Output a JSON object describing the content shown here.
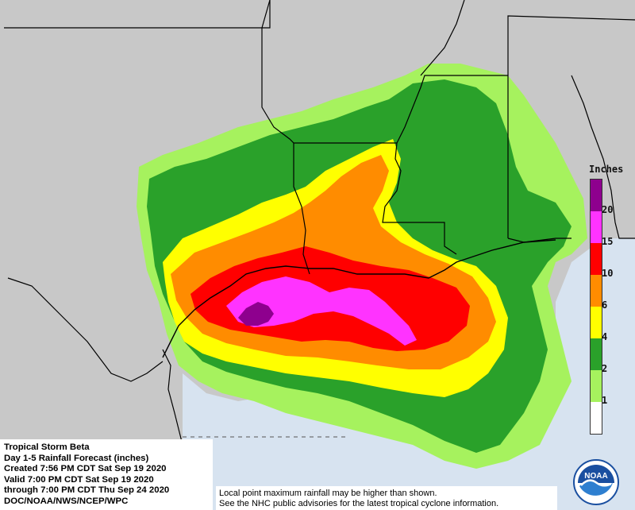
{
  "legend": {
    "title": "Inches",
    "bins": [
      {
        "label": "",
        "color": "#ffffff"
      },
      {
        "label": "1",
        "color": "#a6f25e"
      },
      {
        "label": "2",
        "color": "#2aa12a"
      },
      {
        "label": "4",
        "color": "#ffff00"
      },
      {
        "label": "6",
        "color": "#ff8c00"
      },
      {
        "label": "10",
        "color": "#ff0000"
      },
      {
        "label": "15",
        "color": "#ff33ff"
      },
      {
        "label": "20",
        "color": "#8e008e"
      }
    ]
  },
  "info": {
    "line1": "Tropical Storm Beta",
    "line2": "Day 1-5 Rainfall Forecast (inches)",
    "line3": "Created 7:56 PM CDT Sat Sep 19 2020",
    "line4": "Valid 7:00 PM CDT Sat Sep 19 2020",
    "line5": "through 7:00 PM CDT Thu Sep 24 2020",
    "line6": "DOC/NOAA/NWS/NCEP/WPC"
  },
  "disclaimer": {
    "line1": "Local point maximum rainfall may be higher than shown.",
    "line2": "See the NHC public advisories for the latest tropical cyclone information."
  },
  "logo": {
    "text": "NOAA",
    "color": "#1a4fa0"
  },
  "colors": {
    "land": "#c8c8c8",
    "gulf": "#d7e3f0",
    "light_green": "#a6f25e",
    "dark_green": "#2aa12a",
    "yellow": "#ffff00",
    "orange": "#ff8c00",
    "red": "#ff0000",
    "magenta": "#ff33ff",
    "purple": "#8e008e"
  }
}
